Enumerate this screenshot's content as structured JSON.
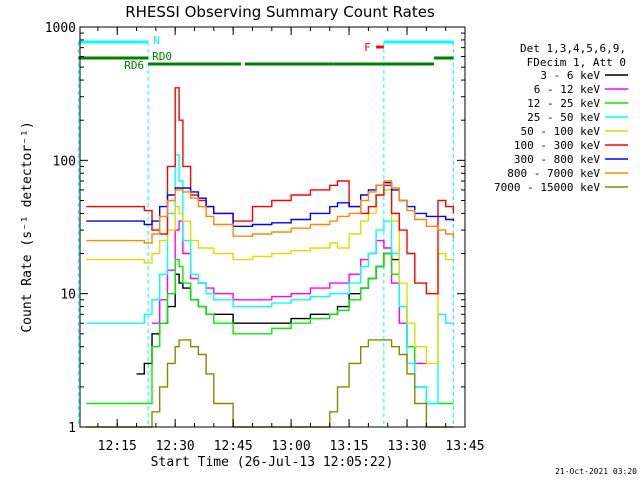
{
  "chart_data": {
    "type": "line",
    "title": "RHESSI Observing Summary Count Rates",
    "xlabel": "Start Time (26-Jul-13 12:05:22)",
    "ylabel": "Count Rate (s⁻¹ detector⁻¹)",
    "yscale": "log",
    "ylim": [
      1,
      1000
    ],
    "xlim": [
      "12:05:22",
      "13:45:00"
    ],
    "xticks": [
      "12:15",
      "12:30",
      "12:45",
      "13:00",
      "13:15",
      "13:30",
      "13:45"
    ],
    "yticks": [
      "1",
      "10",
      "100",
      "1000"
    ],
    "legend_header": [
      "Det 1,3,4,5,6,9,",
      "FDecim 1, Att 0"
    ],
    "legend_position": "right",
    "footer": "21-Oct-2021 03:20",
    "flags": {
      "night": [
        {
          "label": "N",
          "segments": [
            [
              "12:05",
              "12:23"
            ],
            [
              "13:24",
              "13:42"
            ]
          ]
        }
      ],
      "flare": {
        "label": "F",
        "segments": [
          [
            "13:22",
            "13:24"
          ]
        ]
      },
      "decim": [
        {
          "label": "RD0",
          "segments": [
            [
              "12:23",
              "12:47"
            ],
            [
              "12:48",
              "13:11"
            ],
            [
              "13:11",
              "13:37"
            ]
          ]
        },
        {
          "label": "RD6",
          "segments": [
            [
              "12:05",
              "12:23"
            ],
            [
              "13:37",
              "13:42"
            ]
          ]
        }
      ]
    },
    "x": [
      "12:07",
      "12:10",
      "12:15",
      "12:20",
      "12:22",
      "12:24",
      "12:26",
      "12:28",
      "12:30",
      "12:31",
      "12:32",
      "12:34",
      "12:36",
      "12:38",
      "12:40",
      "12:45",
      "12:50",
      "12:55",
      "13:00",
      "13:05",
      "13:10",
      "13:12",
      "13:15",
      "13:18",
      "13:20",
      "13:22",
      "13:24",
      "13:26",
      "13:28",
      "13:30",
      "13:32",
      "13:35",
      "13:38",
      "13:40",
      "13:42"
    ],
    "series": [
      {
        "name": "3 - 6 keV",
        "color": "#000000",
        "values": [
          null,
          null,
          null,
          2.5,
          3,
          5,
          6,
          8,
          14,
          12,
          11,
          9,
          8,
          7,
          7,
          6,
          6,
          6,
          6.5,
          7,
          7,
          8,
          10,
          11,
          13,
          16,
          20,
          18,
          12,
          null,
          null,
          null,
          null,
          null,
          null
        ]
      },
      {
        "name": "6 - 12 keV",
        "color": "#ff00ff",
        "values": [
          null,
          null,
          null,
          null,
          null,
          6,
          9,
          15,
          30,
          35,
          20,
          13,
          12,
          11,
          10,
          9,
          9,
          9.5,
          10,
          11,
          12,
          12,
          14,
          18,
          20,
          25,
          22,
          12,
          6,
          4,
          3,
          3,
          null,
          null,
          null
        ]
      },
      {
        "name": "12 - 25 keV",
        "color": "#00ee00",
        "values": [
          1.5,
          1.5,
          1.5,
          1.5,
          1.5,
          4,
          6,
          10,
          18,
          16,
          12,
          9,
          8,
          7,
          6,
          5,
          5,
          5.5,
          6,
          6.5,
          7,
          7.5,
          9,
          11,
          13,
          16,
          20,
          14,
          8,
          4,
          2,
          1.5,
          1.5,
          1.5,
          1.5
        ]
      },
      {
        "name": "25 - 50 keV",
        "color": "#00ffff",
        "values": [
          6,
          6,
          6,
          6,
          7,
          9,
          14,
          40,
          110,
          70,
          25,
          14,
          12,
          10,
          9,
          8,
          8,
          8.5,
          9,
          9.5,
          10,
          10,
          12,
          16,
          20,
          30,
          35,
          20,
          8,
          3,
          2,
          1.5,
          7,
          6,
          6
        ]
      },
      {
        "name": "50 - 100 keV",
        "color": "#dddd00",
        "values": [
          18,
          18,
          18,
          18,
          17,
          20,
          25,
          30,
          45,
          40,
          35,
          25,
          22,
          22,
          20,
          18,
          19,
          20,
          21,
          22,
          24,
          22,
          28,
          35,
          40,
          55,
          60,
          35,
          12,
          6,
          4,
          3,
          20,
          18,
          18
        ]
      },
      {
        "name": "100 - 300 keV",
        "color": "#ff0000",
        "values": [
          45,
          45,
          45,
          45,
          42,
          30,
          28,
          90,
          350,
          200,
          90,
          55,
          50,
          45,
          40,
          35,
          45,
          50,
          55,
          60,
          65,
          70,
          45,
          40,
          45,
          55,
          65,
          40,
          30,
          20,
          12,
          10,
          50,
          45,
          40
        ]
      },
      {
        "name": "300 - 800 keV",
        "color": "#0000ff",
        "values": [
          35,
          35,
          35,
          35,
          33,
          35,
          45,
          55,
          62,
          62,
          62,
          58,
          52,
          45,
          40,
          32,
          33,
          34,
          36,
          40,
          45,
          48,
          45,
          55,
          60,
          65,
          68,
          60,
          50,
          45,
          40,
          38,
          38,
          36,
          35
        ]
      },
      {
        "name": "800 - 7000 keV",
        "color": "#ff8800",
        "values": [
          25,
          25,
          25,
          25,
          24,
          28,
          38,
          50,
          60,
          60,
          58,
          52,
          45,
          38,
          33,
          27,
          28,
          29,
          31,
          33,
          35,
          38,
          40,
          50,
          58,
          65,
          70,
          62,
          50,
          42,
          36,
          32,
          30,
          28,
          26
        ]
      },
      {
        "name": "7000 - 15000 keV",
        "color": "#888800",
        "values": [
          1,
          1,
          1,
          1,
          1,
          1.3,
          2,
          3,
          4,
          4.5,
          4.5,
          4,
          3.5,
          2.5,
          1.5,
          1,
          1,
          1,
          1,
          1,
          1.3,
          2,
          3,
          4,
          4.5,
          4.5,
          4.5,
          4,
          3.5,
          2.5,
          1.5,
          1,
          1,
          1,
          1
        ]
      }
    ]
  }
}
